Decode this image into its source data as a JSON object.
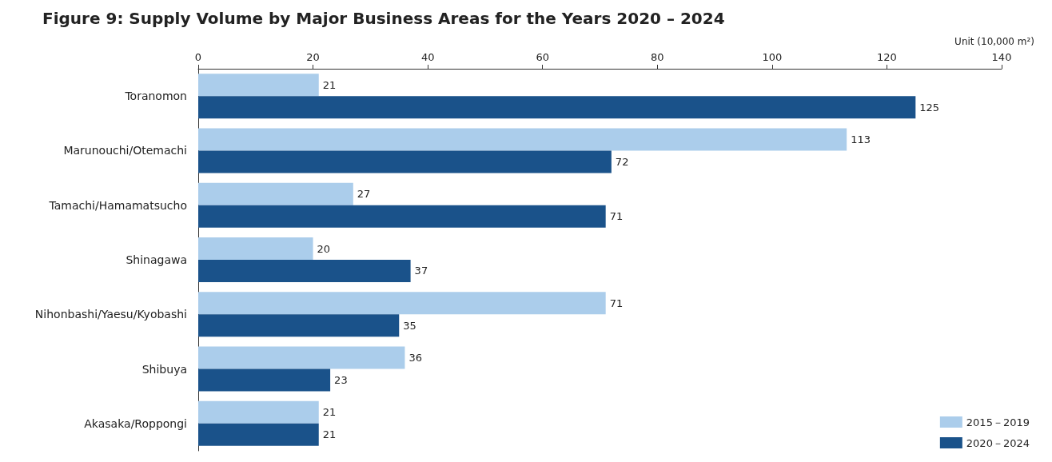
{
  "chart_data": {
    "type": "bar",
    "orientation": "horizontal",
    "title": "Figure 9: Supply Volume by Major Business Areas for the Years 2020 – 2024",
    "xlabel": "Unit (10,000 m²)",
    "categories": [
      "Toranomon",
      "Marunouchi/Otemachi",
      "Tamachi/Hamamatsucho",
      "Shinagawa",
      "Nihonbashi/Yaesu/Kyobashi",
      "Shibuya",
      "Akasaka/Roppongi"
    ],
    "series": [
      {
        "name": "2015－2019",
        "color": "#abcdeb",
        "values": [
          21,
          113,
          27,
          20,
          71,
          36,
          21
        ]
      },
      {
        "name": "2020－2024",
        "color": "#1a528a",
        "values": [
          125,
          72,
          71,
          37,
          35,
          23,
          21
        ]
      }
    ],
    "xlim": [
      0,
      140
    ],
    "xticks": [
      0,
      20,
      40,
      60,
      80,
      100,
      120,
      140
    ],
    "grid": false,
    "legend": "bottom right",
    "data_labels": true
  }
}
